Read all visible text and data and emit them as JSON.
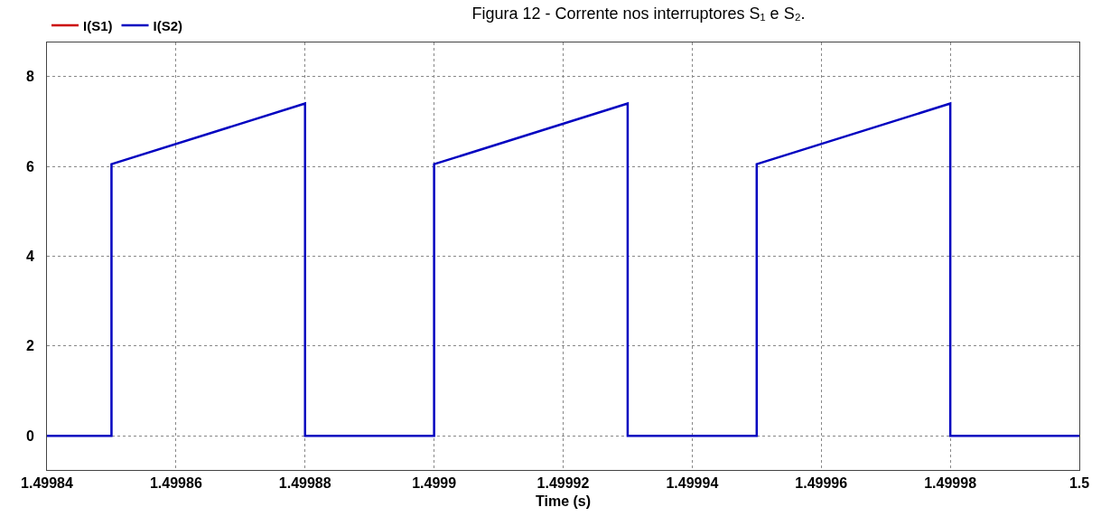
{
  "chart_data": {
    "type": "line",
    "title": "Figura 12 - Corrente nos interruptores S₁ e S₂.",
    "xlabel": "Time (s)",
    "x": [
      1.49984,
      1.49985,
      1.49985,
      1.49985,
      1.49988,
      1.49988,
      1.49988,
      1.4999,
      1.4999,
      1.4999,
      1.49993,
      1.49993,
      1.49993,
      1.49995,
      1.49995,
      1.49995,
      1.49998,
      1.49998,
      1.49998,
      1.5
    ],
    "series": [
      {
        "name": "I(S1)",
        "color": "#cc0000",
        "values": [
          null,
          null,
          null,
          null,
          null,
          null,
          null,
          null,
          null,
          null,
          null,
          null,
          null,
          null,
          null,
          null,
          null,
          null,
          null,
          null
        ]
      },
      {
        "name": "I(S2)",
        "color": "#0000c0",
        "values": [
          0,
          0,
          3,
          6.05,
          7.4,
          3.7,
          0,
          0,
          3,
          6.05,
          7.4,
          3.7,
          0,
          0,
          3,
          6.05,
          7.4,
          3.7,
          0,
          0
        ]
      }
    ],
    "xlim": [
      1.49984,
      1.5
    ],
    "xticks": [
      1.49984,
      1.49986,
      1.49988,
      1.4999,
      1.49992,
      1.49994,
      1.49996,
      1.49998,
      1.5
    ],
    "ylim": [
      -0.76,
      8.76
    ],
    "yticks": [
      0,
      2,
      4,
      6,
      8
    ],
    "grid": true,
    "legend": "top left",
    "marker": "none",
    "line_style": "solid"
  }
}
